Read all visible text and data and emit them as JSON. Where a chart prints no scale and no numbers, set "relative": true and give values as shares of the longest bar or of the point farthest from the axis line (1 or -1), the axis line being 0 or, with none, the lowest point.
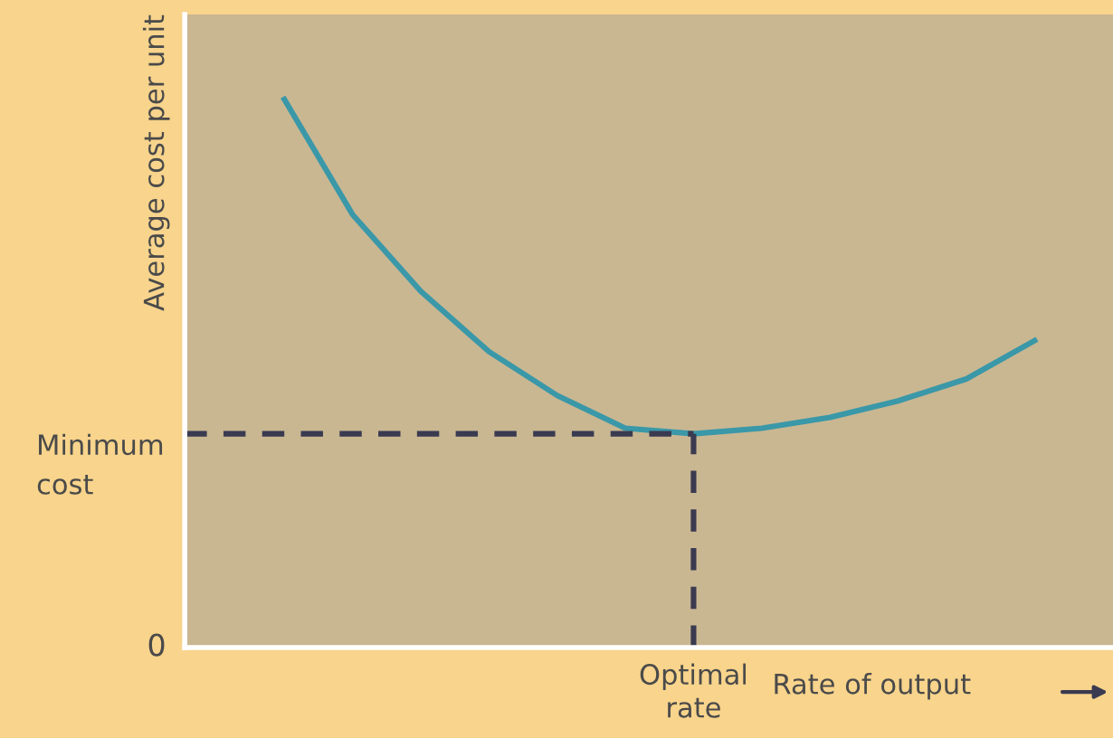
{
  "chart_data": {
    "type": "line",
    "relative": true,
    "xlabel": "Rate of output",
    "ylabel": "Average cost per unit",
    "categories": [
      null,
      null,
      null,
      null,
      null,
      null,
      null,
      null,
      null,
      null,
      null,
      null
    ],
    "series": [
      {
        "color": "#3a98a8",
        "values": [
          1.0,
          0.79,
          0.65,
          0.54,
          0.46,
          0.4,
          0.39,
          0.4,
          0.42,
          0.45,
          0.49,
          0.56
        ]
      }
    ],
    "ref_lines": [
      {
        "axis": "y",
        "value": 0.39,
        "label": "Minimum cost",
        "color": "#3a3a50",
        "line_style": "dashed"
      }
    ],
    "annotations": [
      "0",
      "Optimal rate"
    ],
    "legend": false,
    "marker": "none",
    "line_style": "solid"
  }
}
